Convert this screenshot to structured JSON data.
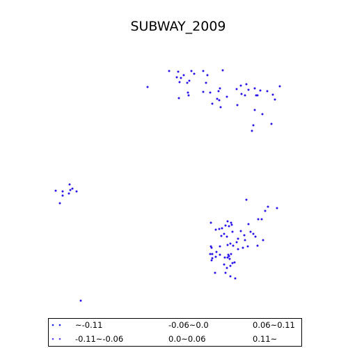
{
  "chart_data": {
    "type": "scatter",
    "title": "SUBWAY_2009",
    "xlabel": "",
    "ylabel": "",
    "axes_visible": false,
    "legend": {
      "placement": "bottom",
      "entries": [
        {
          "label": "~-0.11",
          "color": "#1a1ad9"
        },
        {
          "label": "-0.11~-0.06",
          "color": "#5a3ef0"
        },
        {
          "label": "-0.06~0.0",
          "color": "#3a1ae8"
        },
        {
          "label": "0.0~0.06",
          "color": "#3a1ae8"
        },
        {
          "label": "0.06~0.11",
          "color": "#3a1ae8"
        },
        {
          "label": "0.11~",
          "color": "#3a1ae8"
        }
      ]
    },
    "series": [
      {
        "color": "#2a14e8",
        "points": [
          [
            243,
            102
          ],
          [
            256,
            103
          ],
          [
            275,
            102
          ],
          [
            292,
            102
          ],
          [
            320,
            101
          ],
          [
            279,
            106
          ],
          [
            264,
            108
          ],
          [
            254,
            111
          ],
          [
            260,
            112
          ],
          [
            272,
            116
          ],
          [
            258,
            118
          ],
          [
            269,
            119
          ],
          [
            298,
            108
          ],
          [
            212,
            125
          ],
          [
            296,
            119
          ],
          [
            316,
            127
          ],
          [
            314,
            131
          ],
          [
            302,
            133
          ],
          [
            270,
            133
          ],
          [
            271,
            137
          ],
          [
            292,
            132
          ],
          [
            257,
            141
          ],
          [
            312,
            142
          ],
          [
            315,
            144
          ],
          [
            326,
            139
          ],
          [
            305,
            149
          ],
          [
            317,
            154
          ],
          [
            354,
            121
          ],
          [
            346,
            123
          ],
          [
            340,
            128
          ],
          [
            357,
            129
          ],
          [
            366,
            127
          ],
          [
            374,
            130
          ],
          [
            384,
            131
          ],
          [
            392,
            136
          ],
          [
            402,
            124
          ],
          [
            368,
            137
          ],
          [
            370,
            137
          ],
          [
            352,
            137
          ],
          [
            347,
            135
          ],
          [
            341,
            151
          ],
          [
            366,
            158
          ],
          [
            377,
            164
          ],
          [
            395,
            143
          ],
          [
            390,
            178
          ],
          [
            364,
            180
          ],
          [
            362,
            188
          ],
          [
            80,
            274
          ],
          [
            90,
            275
          ],
          [
            100,
            265
          ],
          [
            104,
            271
          ],
          [
            101,
            273
          ],
          [
            110,
            275
          ],
          [
            99,
            278
          ],
          [
            90,
            281
          ],
          [
            86,
            292
          ],
          [
            354,
            287
          ],
          [
            385,
            297
          ],
          [
            398,
            299
          ],
          [
            381,
            303
          ],
          [
            371,
            315
          ],
          [
            376,
            315
          ],
          [
            357,
            322
          ],
          [
            303,
            320
          ],
          [
            327,
            318
          ],
          [
            332,
            320
          ],
          [
            333,
            323
          ],
          [
            324,
            324
          ],
          [
            329,
            325
          ],
          [
            319,
            328
          ],
          [
            315,
            329
          ],
          [
            310,
            330
          ],
          [
            322,
            336
          ],
          [
            318,
            339
          ],
          [
            326,
            340
          ],
          [
            334,
            333
          ],
          [
            346,
            332
          ],
          [
            360,
            333
          ],
          [
            364,
            336
          ],
          [
            367,
            340
          ],
          [
            378,
            345
          ],
          [
            351,
            338
          ],
          [
            352,
            345
          ],
          [
            342,
            343
          ],
          [
            340,
            348
          ],
          [
            331,
            350
          ],
          [
            327,
            352
          ],
          [
            316,
            354
          ],
          [
            335,
            353
          ],
          [
            342,
            358
          ],
          [
            349,
            356
          ],
          [
            356,
            354
          ],
          [
            370,
            353
          ],
          [
            303,
            354
          ],
          [
            304,
            356
          ],
          [
            311,
            362
          ],
          [
            305,
            365
          ],
          [
            302,
            365
          ],
          [
            310,
            369
          ],
          [
            305,
            371
          ],
          [
            304,
            374
          ],
          [
            316,
            366
          ],
          [
            323,
            370
          ],
          [
            329,
            368
          ],
          [
            327,
            370
          ],
          [
            332,
            365
          ],
          [
            328,
            366
          ],
          [
            330,
            372
          ],
          [
            334,
            378
          ],
          [
            331,
            382
          ],
          [
            337,
            377
          ],
          [
            322,
            380
          ],
          [
            326,
            385
          ],
          [
            309,
            392
          ],
          [
            324,
            392
          ],
          [
            331,
            397
          ],
          [
            338,
            400
          ],
          [
            116,
            432
          ]
        ]
      }
    ]
  }
}
